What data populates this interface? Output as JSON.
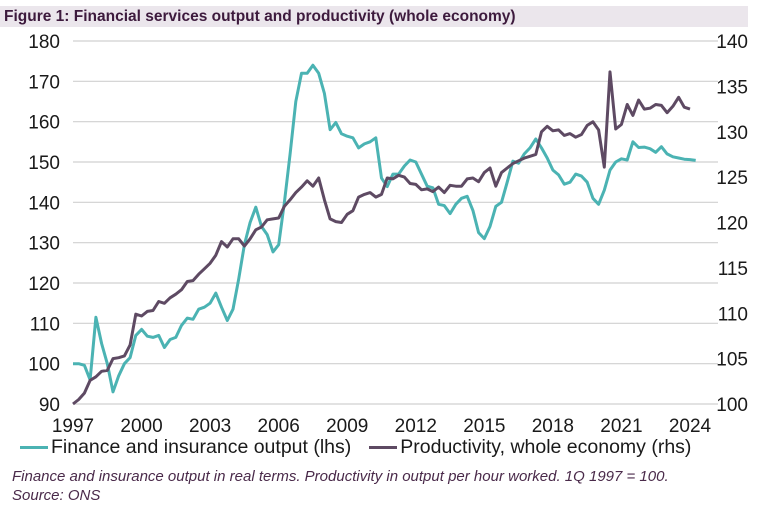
{
  "title": "Figure 1:  Financial services output and productivity (whole economy)",
  "footnote": "Finance and insurance output in real terms. Productivity in output per hour worked. 1Q 1997 = 100.",
  "source": "Source: ONS",
  "colors": {
    "finance": "#4bb3b3",
    "productivity": "#5e4a63",
    "grid": "#d0d0d0",
    "title_bg": "#ebe6ec",
    "title_text": "#3d1a3d"
  },
  "chart_data": {
    "type": "line",
    "title": "Figure 1:  Financial services output and productivity (whole economy)",
    "xlabel": "",
    "ylabel_left": "",
    "ylabel_right": "",
    "x_start": 1997.0,
    "x_step": 0.25,
    "xlim": [
      1997,
      2024.2
    ],
    "xticks": [
      "1997",
      "2000",
      "2003",
      "2006",
      "2009",
      "2012",
      "2015",
      "2018",
      "2021",
      "2024"
    ],
    "ylim_left": [
      90,
      180
    ],
    "yticks_left": [
      "180",
      "170",
      "160",
      "150",
      "140",
      "130",
      "120",
      "110",
      "100",
      "90"
    ],
    "ylim_right": [
      100,
      140
    ],
    "yticks_right": [
      "140",
      "135",
      "130",
      "125",
      "120",
      "115",
      "110",
      "105",
      "100"
    ],
    "grid": true,
    "legend_position": "bottom",
    "series": [
      {
        "name": "Finance and insurance output (lhs)",
        "axis": "left",
        "values": [
          100,
          100,
          99.6,
          96,
          111.5,
          105,
          100,
          93,
          97,
          100,
          101.5,
          107,
          108.5,
          106.8,
          106.5,
          107,
          104,
          106,
          106.5,
          109.5,
          111.3,
          111,
          113.5,
          114,
          115,
          117.5,
          114,
          110.7,
          113.5,
          121,
          129.5,
          135,
          138.8,
          134,
          132,
          127.7,
          129.5,
          140,
          152,
          165,
          172,
          172,
          174,
          172,
          167,
          158,
          159.8,
          157,
          156.4,
          156,
          153.5,
          154.5,
          155,
          156,
          146,
          143.9,
          147,
          147,
          149,
          150.5,
          150,
          147,
          144,
          143.6,
          139.5,
          139.2,
          137.2,
          139.5,
          141,
          141.5,
          138,
          132.5,
          131,
          134,
          139,
          140,
          145,
          150.2,
          149.7,
          152,
          153.5,
          155.7,
          153.5,
          151,
          148,
          146.8,
          144.5,
          145,
          147,
          146.5,
          145,
          141,
          139.5,
          143,
          148,
          150,
          150.8,
          150.5,
          155,
          153.6,
          153.7,
          153.3,
          152.4,
          153.8,
          152,
          151.3,
          151,
          150.7,
          150.6,
          150.4
        ]
      },
      {
        "name": "Productivity, whole economy (rhs)",
        "axis": "right",
        "values": [
          100,
          100.5,
          101.2,
          102.6,
          103,
          103.6,
          103.7,
          105,
          105.1,
          105.3,
          106.5,
          109.9,
          109.7,
          110.2,
          110.3,
          111.3,
          111.1,
          111.7,
          112.1,
          112.6,
          113.5,
          113.6,
          114.3,
          114.9,
          115.5,
          116.4,
          117.9,
          117.3,
          118.2,
          118.2,
          117.4,
          118.2,
          119.2,
          119.5,
          120.3,
          120.4,
          120.5,
          121.8,
          122.5,
          123.3,
          123.9,
          124.6,
          124,
          124.9,
          122.5,
          120.4,
          120.1,
          120,
          120.9,
          121.3,
          122.8,
          123.1,
          123.3,
          122.8,
          123.1,
          124.9,
          124.8,
          125.2,
          125,
          124.3,
          124.2,
          123.6,
          123.7,
          123.4,
          123.9,
          123.3,
          124.1,
          124,
          124,
          124.8,
          124.9,
          124.5,
          125.5,
          126,
          124,
          125.5,
          126,
          126.5,
          126.8,
          127.1,
          127.3,
          127.5,
          130,
          130.6,
          130.1,
          130.2,
          129.6,
          129.8,
          129.4,
          129.7,
          130.7,
          131.1,
          130.2,
          126.1,
          136.6,
          130.3,
          130.8,
          133,
          131.8,
          133.5,
          132.5,
          132.6,
          133,
          132.9,
          132.1,
          132.8,
          133.8,
          132.7,
          132.5
        ]
      }
    ]
  },
  "legend": [
    {
      "label": "Finance and insurance output (lhs)",
      "color": "#4bb3b3"
    },
    {
      "label": "Productivity, whole economy (rhs)",
      "color": "#5e4a63"
    }
  ]
}
